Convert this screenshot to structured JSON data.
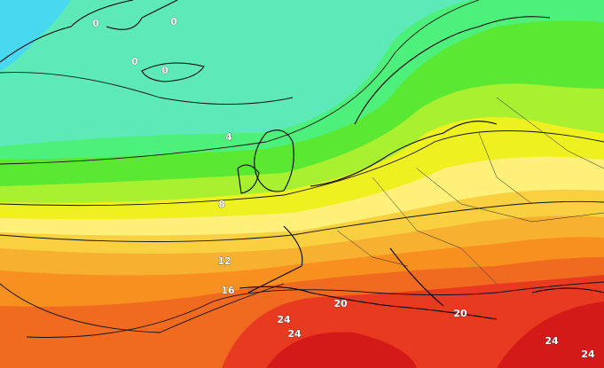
{
  "contour_labels": [
    0,
    0,
    0,
    0,
    4,
    8,
    12,
    16,
    20,
    20,
    24,
    24,
    24,
    24
  ]
}
